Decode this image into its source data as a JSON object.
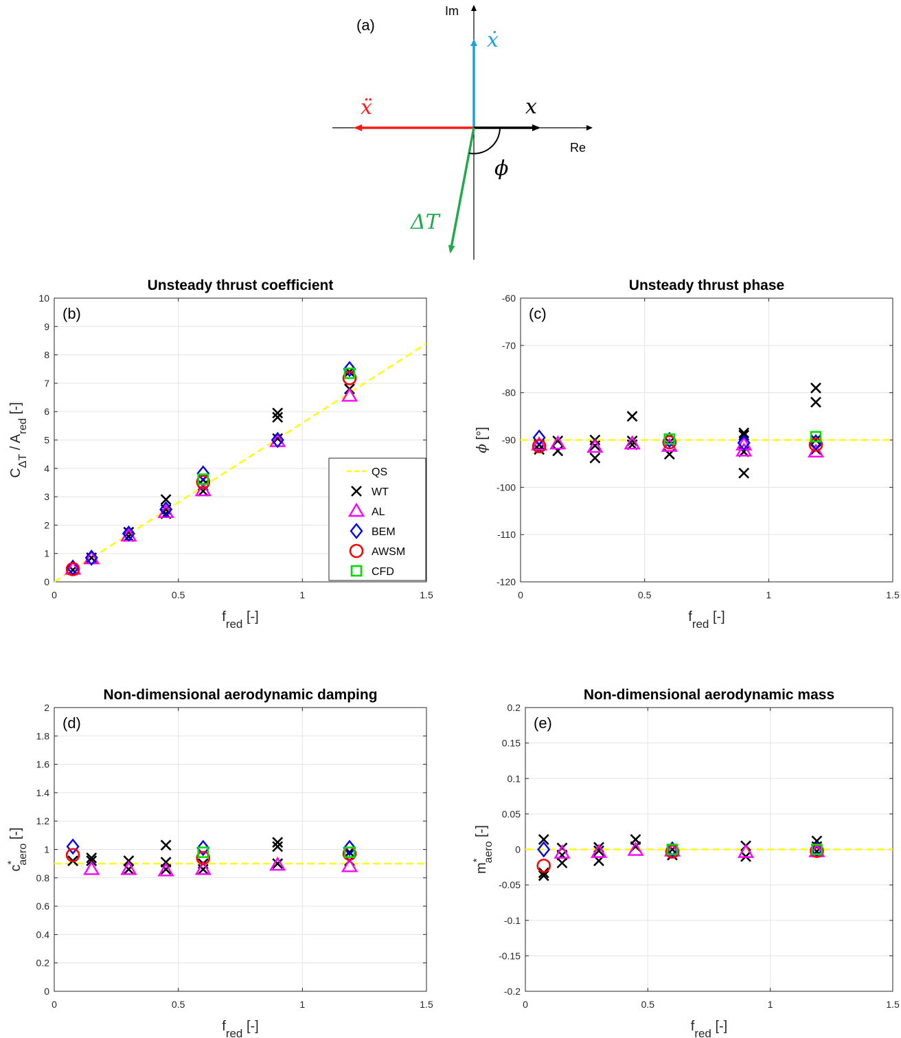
{
  "diagram": {
    "panel_label": "(a)",
    "axis_im": "Im",
    "axis_re": "Re",
    "vectors": [
      {
        "name": "x-dot",
        "label": "ẋ",
        "color": "#1ba1e2"
      },
      {
        "name": "x",
        "label": "x",
        "color": "#000000"
      },
      {
        "name": "x-ddot",
        "label": "ẍ",
        "color": "#ff1a1a"
      },
      {
        "name": "delta-t",
        "label": "ΔT",
        "color": "#1faa4c"
      }
    ],
    "angle_label": "ϕ"
  },
  "chart_data": [
    {
      "id": "b",
      "type": "scatter",
      "panel_label": "(b)",
      "title": "Unsteady thrust coefficient",
      "xlabel": {
        "main": "f",
        "sub": "red",
        "suffix": " [-]"
      },
      "ylabel": {
        "prefix": "C",
        "sub": "ΔT",
        "mid": " / A",
        "sub2": "red",
        "suffix": " [-]"
      },
      "xlim": [
        0,
        1.5
      ],
      "ylim": [
        0,
        10
      ],
      "xticks": [
        0,
        0.5,
        1,
        1.5
      ],
      "xtick_labels": [
        "0",
        "0.5",
        "1",
        "1.5"
      ],
      "yticks": [
        0,
        1,
        2,
        3,
        4,
        5,
        6,
        7,
        8,
        9,
        10
      ],
      "ytick_labels": [
        "0",
        "1",
        "2",
        "3",
        "4",
        "5",
        "6",
        "7",
        "8",
        "9",
        "10"
      ],
      "qs_line": {
        "x": [
          0,
          1.5
        ],
        "y": [
          0,
          8.4
        ]
      },
      "series": [
        {
          "name": "WT",
          "marker": "x",
          "color": "#000000",
          "points": [
            [
              0.075,
              0.42
            ],
            [
              0.15,
              0.85
            ],
            [
              0.3,
              1.75
            ],
            [
              0.3,
              1.6
            ],
            [
              0.45,
              2.9
            ],
            [
              0.45,
              2.55
            ],
            [
              0.45,
              2.4
            ],
            [
              0.6,
              3.4
            ],
            [
              0.6,
              3.2
            ],
            [
              0.6,
              3.6
            ],
            [
              0.9,
              5.95
            ],
            [
              0.9,
              5.8
            ],
            [
              0.9,
              5.05
            ],
            [
              1.19,
              7.4
            ],
            [
              1.19,
              6.8
            ]
          ]
        },
        {
          "name": "AL",
          "marker": "triangle",
          "color": "#ff00ff",
          "points": [
            [
              0.075,
              0.45
            ],
            [
              0.15,
              0.82
            ],
            [
              0.3,
              1.62
            ],
            [
              0.45,
              2.45
            ],
            [
              0.6,
              3.22
            ],
            [
              0.9,
              4.95
            ],
            [
              1.19,
              6.55
            ]
          ]
        },
        {
          "name": "BEM",
          "marker": "diamond",
          "color": "#0000ff",
          "points": [
            [
              0.075,
              0.5
            ],
            [
              0.15,
              0.85
            ],
            [
              0.3,
              1.7
            ],
            [
              0.45,
              2.55
            ],
            [
              0.6,
              3.82
            ],
            [
              0.9,
              5.0
            ],
            [
              1.19,
              7.5
            ]
          ]
        },
        {
          "name": "AWSM",
          "marker": "circle",
          "color": "#ff0000",
          "points": [
            [
              0.075,
              0.45
            ],
            [
              0.6,
              3.52
            ],
            [
              1.19,
              7.18
            ]
          ]
        },
        {
          "name": "CFD",
          "marker": "square",
          "color": "#00dd00",
          "points": [
            [
              0.6,
              3.62
            ],
            [
              1.19,
              7.35
            ]
          ]
        }
      ],
      "legend": {
        "position": "bottom-right",
        "entries": [
          {
            "marker": "dash",
            "color": "#ffff00",
            "label": "QS"
          },
          {
            "marker": "x",
            "color": "#000000",
            "label": "WT"
          },
          {
            "marker": "triangle",
            "color": "#ff00ff",
            "label": "AL"
          },
          {
            "marker": "diamond",
            "color": "#0000ff",
            "label": "BEM"
          },
          {
            "marker": "circle",
            "color": "#ff0000",
            "label": "AWSM"
          },
          {
            "marker": "square",
            "color": "#00dd00",
            "label": "CFD"
          }
        ]
      }
    },
    {
      "id": "c",
      "type": "scatter",
      "panel_label": "(c)",
      "title": "Unsteady thrust phase",
      "xlabel": {
        "main": "f",
        "sub": "red",
        "suffix": " [-]"
      },
      "ylabel": {
        "symbol": "ϕ",
        "suffix": " [°]"
      },
      "xlim": [
        0,
        1.5
      ],
      "ylim": [
        -120,
        -60
      ],
      "xticks": [
        0,
        0.5,
        1,
        1.5
      ],
      "xtick_labels": [
        "0",
        "0.5",
        "1",
        "1.5"
      ],
      "yticks": [
        -120,
        -110,
        -100,
        -90,
        -80,
        -70,
        -60
      ],
      "ytick_labels": [
        "-120",
        "-110",
        "-100",
        "-90",
        "-80",
        "-70",
        "-60"
      ],
      "qs_line": {
        "x": [
          0,
          1.5
        ],
        "y": [
          -90,
          -90
        ]
      },
      "series": [
        {
          "name": "WT",
          "marker": "x",
          "color": "#000000",
          "points": [
            [
              0.075,
              -92.0
            ],
            [
              0.075,
              -91.0
            ],
            [
              0.15,
              -92.3
            ],
            [
              0.15,
              -90.2
            ],
            [
              0.3,
              -93.8
            ],
            [
              0.3,
              -90.0
            ],
            [
              0.3,
              -91.2
            ],
            [
              0.45,
              -85.0
            ],
            [
              0.45,
              -90.2
            ],
            [
              0.45,
              -91.0
            ],
            [
              0.6,
              -93.0
            ],
            [
              0.6,
              -90.5
            ],
            [
              0.9,
              -97.0
            ],
            [
              0.9,
              -89.0
            ],
            [
              0.9,
              -88.5
            ],
            [
              0.9,
              -92.5
            ],
            [
              1.19,
              -79.0
            ],
            [
              1.19,
              -82.0
            ],
            [
              1.19,
              -92.0
            ],
            [
              1.19,
              -90.0
            ]
          ]
        },
        {
          "name": "AL",
          "marker": "triangle",
          "color": "#ff00ff",
          "points": [
            [
              0.075,
              -91.0
            ],
            [
              0.15,
              -90.8
            ],
            [
              0.3,
              -91.5
            ],
            [
              0.45,
              -90.8
            ],
            [
              0.6,
              -91.3
            ],
            [
              0.9,
              -92.3
            ],
            [
              0.9,
              -91.0
            ],
            [
              1.19,
              -92.5
            ]
          ]
        },
        {
          "name": "BEM",
          "marker": "diamond",
          "color": "#0000ff",
          "points": [
            [
              0.075,
              -89.5
            ],
            [
              0.6,
              -90.0
            ],
            [
              0.9,
              -90.6
            ],
            [
              1.19,
              -90.5
            ]
          ]
        },
        {
          "name": "AWSM",
          "marker": "circle",
          "color": "#ff0000",
          "points": [
            [
              0.075,
              -91.3
            ],
            [
              0.6,
              -90.5
            ],
            [
              1.19,
              -91.0
            ]
          ]
        },
        {
          "name": "CFD",
          "marker": "square",
          "color": "#00dd00",
          "points": [
            [
              0.6,
              -89.8
            ],
            [
              1.19,
              -89.3
            ]
          ]
        }
      ]
    },
    {
      "id": "d",
      "type": "scatter",
      "panel_label": "(d)",
      "title": "Non-dimensional aerodynamic damping",
      "xlabel": {
        "main": "f",
        "sub": "red",
        "suffix": " [-]"
      },
      "ylabel": {
        "prefix": "c",
        "sup": "*",
        "sub": "aero",
        "suffix": " [-]"
      },
      "xlim": [
        0,
        1.5
      ],
      "ylim": [
        0,
        2
      ],
      "xticks": [
        0,
        0.5,
        1,
        1.5
      ],
      "xtick_labels": [
        "0",
        "0.5",
        "1",
        "1.5"
      ],
      "yticks": [
        0,
        0.2,
        0.4,
        0.6,
        0.8,
        1,
        1.2,
        1.4,
        1.6,
        1.8,
        2
      ],
      "ytick_labels": [
        "0",
        "0.2",
        "0.4",
        "0.6",
        "0.8",
        "1",
        "1.2",
        "1.4",
        "1.6",
        "1.8",
        "2"
      ],
      "qs_line": {
        "x": [
          0,
          1.5
        ],
        "y": [
          0.9,
          0.9
        ]
      },
      "series": [
        {
          "name": "WT",
          "marker": "x",
          "color": "#000000",
          "points": [
            [
              0.075,
              0.92
            ],
            [
              0.15,
              0.94
            ],
            [
              0.15,
              0.92
            ],
            [
              0.3,
              0.92
            ],
            [
              0.3,
              0.86
            ],
            [
              0.45,
              1.03
            ],
            [
              0.45,
              0.91
            ],
            [
              0.45,
              0.86
            ],
            [
              0.6,
              0.86
            ],
            [
              0.6,
              0.9
            ],
            [
              0.9,
              1.05
            ],
            [
              0.9,
              1.02
            ],
            [
              0.9,
              0.9
            ],
            [
              1.19,
              0.98
            ],
            [
              1.19,
              0.92
            ]
          ]
        },
        {
          "name": "AL",
          "marker": "triangle",
          "color": "#ff00ff",
          "points": [
            [
              0.15,
              0.86
            ],
            [
              0.3,
              0.86
            ],
            [
              0.45,
              0.85
            ],
            [
              0.6,
              0.86
            ],
            [
              0.9,
              0.89
            ],
            [
              1.19,
              0.88
            ]
          ]
        },
        {
          "name": "BEM",
          "marker": "diamond",
          "color": "#0000ff",
          "points": [
            [
              0.075,
              1.02
            ],
            [
              0.6,
              1.01
            ],
            [
              1.19,
              1.01
            ]
          ]
        },
        {
          "name": "AWSM",
          "marker": "circle",
          "color": "#ff0000",
          "points": [
            [
              0.075,
              0.96
            ],
            [
              0.6,
              0.94
            ],
            [
              1.19,
              0.97
            ]
          ]
        },
        {
          "name": "CFD",
          "marker": "square",
          "color": "#00dd00",
          "points": [
            [
              0.6,
              0.98
            ],
            [
              1.19,
              0.98
            ]
          ]
        }
      ]
    },
    {
      "id": "e",
      "type": "scatter",
      "panel_label": "(e)",
      "title": "Non-dimensional aerodynamic mass",
      "xlabel": {
        "main": "f",
        "sub": "red",
        "suffix": " [-]"
      },
      "ylabel": {
        "prefix": "m",
        "sup": "*",
        "sub": "aero",
        "suffix": " [-]"
      },
      "xlim": [
        0,
        1.5
      ],
      "ylim": [
        -0.2,
        0.2
      ],
      "xticks": [
        0,
        0.5,
        1,
        1.5
      ],
      "xtick_labels": [
        "0",
        "0.5",
        "1",
        "1.5"
      ],
      "yticks": [
        -0.2,
        -0.15,
        -0.1,
        -0.05,
        0,
        0.05,
        0.1,
        0.15,
        0.2
      ],
      "ytick_labels": [
        "-0.2",
        "-0.15",
        "-0.1",
        "-0.05",
        "0",
        "0.05",
        "0.1",
        "0.15",
        "0.2"
      ],
      "qs_line": {
        "x": [
          0,
          1.5
        ],
        "y": [
          0,
          0
        ]
      },
      "series": [
        {
          "name": "WT",
          "marker": "x",
          "color": "#000000",
          "points": [
            [
              0.075,
              0.014
            ],
            [
              0.075,
              -0.033
            ],
            [
              0.075,
              -0.037
            ],
            [
              0.15,
              -0.019
            ],
            [
              0.15,
              -0.008
            ],
            [
              0.15,
              0.002
            ],
            [
              0.3,
              -0.016
            ],
            [
              0.3,
              -0.002
            ],
            [
              0.3,
              0.003
            ],
            [
              0.45,
              0.014
            ],
            [
              0.45,
              0.004
            ],
            [
              0.6,
              -0.008
            ],
            [
              0.6,
              0.0
            ],
            [
              0.9,
              -0.01
            ],
            [
              0.9,
              0.005
            ],
            [
              1.19,
              0.012
            ],
            [
              1.19,
              0.004
            ],
            [
              1.19,
              -0.003
            ]
          ]
        },
        {
          "name": "AL",
          "marker": "triangle",
          "color": "#ff00ff",
          "points": [
            [
              0.15,
              -0.005
            ],
            [
              0.3,
              -0.004
            ],
            [
              0.45,
              -0.001
            ],
            [
              0.6,
              -0.002
            ],
            [
              0.9,
              -0.004
            ],
            [
              1.19,
              -0.003
            ]
          ]
        },
        {
          "name": "BEM",
          "marker": "diamond",
          "color": "#0000ff",
          "points": [
            [
              0.075,
              0.0
            ],
            [
              0.6,
              0.0
            ],
            [
              1.19,
              0.0
            ]
          ]
        },
        {
          "name": "AWSM",
          "marker": "circle",
          "color": "#ff0000",
          "points": [
            [
              0.075,
              -0.023
            ],
            [
              0.6,
              -0.003
            ],
            [
              1.19,
              -0.002
            ]
          ]
        },
        {
          "name": "CFD",
          "marker": "square",
          "color": "#00dd00",
          "points": [
            [
              0.6,
              0.0
            ],
            [
              1.19,
              0.0
            ]
          ]
        }
      ]
    }
  ]
}
